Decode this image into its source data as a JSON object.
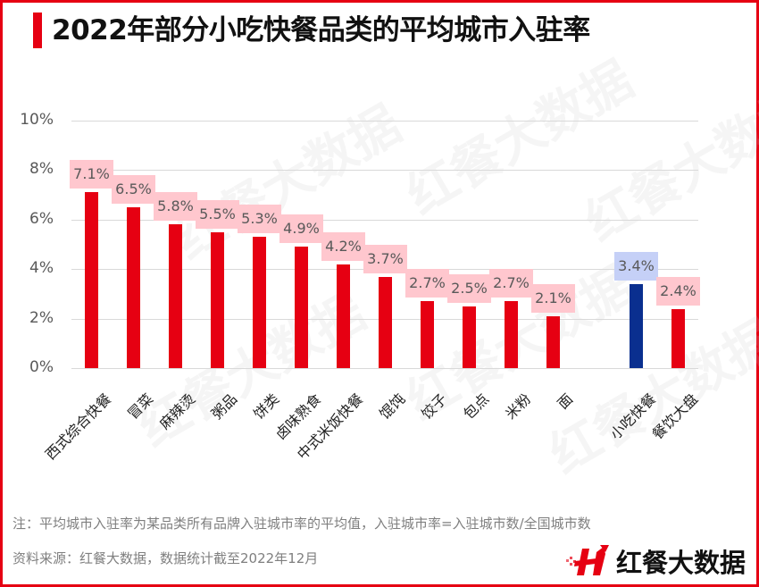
{
  "title": "2022年部分小吃快餐品类的平均城市入驻率",
  "colors": {
    "frame": "#e60012",
    "bar_red": "#e60012",
    "bar_blue": "#0a2f8f",
    "label_bg_red": "#ffc7ce",
    "label_bg_blue": "#c5d0f7",
    "gridline": "#d9d9d9",
    "axis_text": "#595959"
  },
  "y_axis": {
    "ticks": [
      "0%",
      "2%",
      "4%",
      "6%",
      "8%",
      "10%"
    ]
  },
  "bars": [
    {
      "category": "西式综合快餐",
      "label": "7.1%",
      "value": 7.1,
      "color": "red"
    },
    {
      "category": "冒菜",
      "label": "6.5%",
      "value": 6.5,
      "color": "red"
    },
    {
      "category": "麻辣烫",
      "label": "5.8%",
      "value": 5.8,
      "color": "red"
    },
    {
      "category": "粥品",
      "label": "5.5%",
      "value": 5.5,
      "color": "red"
    },
    {
      "category": "饼类",
      "label": "5.3%",
      "value": 5.3,
      "color": "red"
    },
    {
      "category": "卤味熟食",
      "label": "4.9%",
      "value": 4.9,
      "color": "red"
    },
    {
      "category": "中式米饭快餐",
      "label": "4.2%",
      "value": 4.2,
      "color": "red"
    },
    {
      "category": "馄饨",
      "label": "3.7%",
      "value": 3.7,
      "color": "red"
    },
    {
      "category": "饺子",
      "label": "2.7%",
      "value": 2.7,
      "color": "red"
    },
    {
      "category": "包点",
      "label": "2.5%",
      "value": 2.5,
      "color": "red"
    },
    {
      "category": "米粉",
      "label": "2.7%",
      "value": 2.7,
      "color": "red"
    },
    {
      "category": "面",
      "label": "2.1%",
      "value": 2.1,
      "color": "red"
    },
    {
      "category": "小吃快餐",
      "label": "3.4%",
      "value": 3.4,
      "color": "blue"
    },
    {
      "category": "餐饮大盘",
      "label": "2.4%",
      "value": 2.4,
      "color": "red"
    }
  ],
  "watermark": "红餐大数据",
  "footer": {
    "note": "注：平均城市入驻率为某品类所有品牌入驻城市率的平均值，入驻城市率=入驻城市数/全国城市数",
    "source": "资料来源：红餐大数据，数据统计截至2022年12月",
    "logo_text": "红餐大数据"
  },
  "chart_data": {
    "type": "bar",
    "title": "2022年部分小吃快餐品类的平均城市入驻率",
    "categories": [
      "西式综合快餐",
      "冒菜",
      "麻辣烫",
      "粥品",
      "饼类",
      "卤味熟食",
      "中式米饭快餐",
      "馄饨",
      "饺子",
      "包点",
      "米粉",
      "面",
      "小吃快餐",
      "餐饮大盘"
    ],
    "values": [
      7.1,
      6.5,
      5.8,
      5.5,
      5.3,
      4.9,
      4.2,
      3.7,
      2.7,
      2.5,
      2.7,
      2.1,
      3.4,
      2.4
    ],
    "unit": "%",
    "xlabel": "",
    "ylabel": "",
    "ylim": [
      0,
      10
    ],
    "yticks": [
      "0%",
      "2%",
      "4%",
      "6%",
      "8%",
      "10%"
    ],
    "grid": true,
    "legend": null,
    "highlight": {
      "category": "小吃快餐",
      "color": "#0a2f8f"
    },
    "annotations": [
      "注：平均城市入驻率为某品类所有品牌入驻城市率的平均值，入驻城市率=入驻城市数/全国城市数",
      "资料来源：红餐大数据，数据统计截至2022年12月"
    ]
  }
}
